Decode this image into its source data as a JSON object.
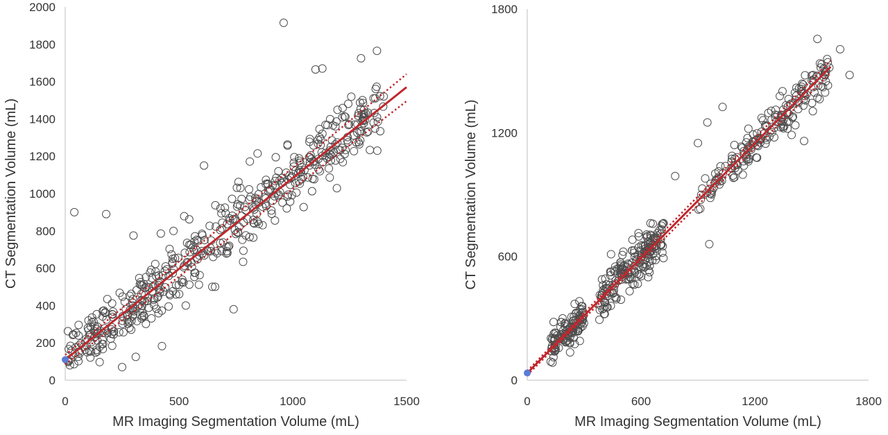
{
  "chart_data": [
    {
      "type": "scatter",
      "title": "",
      "xlabel": "MR Imaging Segmentation Volume (mL)",
      "ylabel": "CT Segmentation Volume (mL)",
      "xlim": [
        0,
        1500
      ],
      "ylim": [
        0,
        2000
      ],
      "xticks": [
        "0",
        "500",
        "1000",
        "1500"
      ],
      "yticks": [
        "0",
        "200",
        "400",
        "600",
        "800",
        "1000",
        "1200",
        "1400",
        "1600",
        "1800",
        "2000"
      ],
      "grid": false,
      "point_color": "#4d4d4d",
      "fit_color": "#c0282d",
      "origin_marker_color": "#5b7bd5",
      "origin_marker": {
        "x": 0,
        "y": 110
      },
      "fit_line": {
        "x": [
          0,
          1500
        ],
        "y": [
          110,
          1570
        ]
      },
      "ci_upper": {
        "x": [
          0,
          1500
        ],
        "y": [
          135,
          1640
        ]
      },
      "ci_lower": {
        "x": [
          0,
          1500
        ],
        "y": [
          85,
          1495
        ]
      },
      "outliers": [
        {
          "x": 960,
          "y": 1915
        },
        {
          "x": 40,
          "y": 900
        },
        {
          "x": 180,
          "y": 890
        },
        {
          "x": 610,
          "y": 1150
        },
        {
          "x": 300,
          "y": 775
        },
        {
          "x": 250,
          "y": 70
        },
        {
          "x": 740,
          "y": 380
        },
        {
          "x": 530,
          "y": 400
        },
        {
          "x": 310,
          "y": 125
        },
        {
          "x": 1100,
          "y": 1665
        },
        {
          "x": 1130,
          "y": 1670
        },
        {
          "x": 1370,
          "y": 1765
        },
        {
          "x": 1300,
          "y": 1725
        }
      ],
      "clusters": [
        {
          "x_min": 10,
          "x_max": 420,
          "y_center": "fit",
          "spread": 95,
          "n": 170
        },
        {
          "x_min": 420,
          "x_max": 880,
          "y_center": "fit",
          "spread": 140,
          "n": 150
        },
        {
          "x_min": 880,
          "x_max": 1400,
          "y_center": "fit",
          "spread": 120,
          "n": 180
        }
      ]
    },
    {
      "type": "scatter",
      "title": "",
      "xlabel": "MR Imaging Segmentation Volume (mL)",
      "ylabel": "CT Segmentation Volume (mL)",
      "xlim": [
        0,
        1800
      ],
      "ylim": [
        0,
        1800
      ],
      "xticks": [
        "0",
        "600",
        "1200",
        "1800"
      ],
      "yticks": [
        "0",
        "600",
        "1200",
        "1800"
      ],
      "grid": false,
      "point_color": "#4d4d4d",
      "fit_color": "#c0282d",
      "origin_marker_color": "#5b7bd5",
      "origin_marker": {
        "x": 0,
        "y": 35
      },
      "fit_line": {
        "x": [
          0,
          1600
        ],
        "y": [
          35,
          1520
        ]
      },
      "ci_upper": {
        "x": [
          0,
          1600
        ],
        "y": [
          45,
          1550
        ]
      },
      "ci_lower": {
        "x": [
          0,
          1600
        ],
        "y": [
          25,
          1490
        ]
      },
      "outliers": [
        {
          "x": 1530,
          "y": 1655
        },
        {
          "x": 1650,
          "y": 1605
        },
        {
          "x": 1700,
          "y": 1480
        },
        {
          "x": 950,
          "y": 1250
        },
        {
          "x": 900,
          "y": 1150
        },
        {
          "x": 1030,
          "y": 1325
        },
        {
          "x": 960,
          "y": 660
        },
        {
          "x": 1460,
          "y": 1160
        },
        {
          "x": 780,
          "y": 990
        },
        {
          "x": 250,
          "y": 370
        }
      ],
      "clusters": [
        {
          "x_min": 120,
          "x_max": 300,
          "y_center": "fit",
          "spread": 55,
          "n": 120
        },
        {
          "x_min": 380,
          "x_max": 720,
          "y_center": "fit",
          "spread": 75,
          "n": 200
        },
        {
          "x_min": 900,
          "x_max": 1600,
          "y_center": "fit",
          "spread": 70,
          "n": 190
        }
      ]
    }
  ]
}
